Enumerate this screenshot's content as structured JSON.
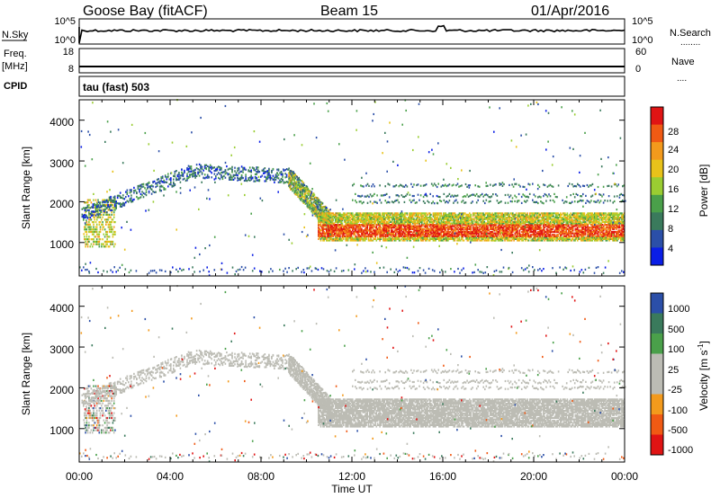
{
  "header": {
    "station": "Goose Bay (fitACF)",
    "beam": "Beam 15",
    "date": "01/Apr/2016"
  },
  "left_labels": {
    "nsky": "N.Sky",
    "freq": "Freq.",
    "freq_unit": "[MHz]",
    "cpid": "CPID"
  },
  "right_labels": {
    "nsearch": "N.Search",
    "nsearch_dots": "........",
    "nave": "Nave",
    "nave_dots": "...."
  },
  "cpid_text": "tau (fast) 503",
  "colors": {
    "power_scale": [
      "#0a1ee6",
      "#2b4fa8",
      "#3a7a5c",
      "#4aa04a",
      "#9acd32",
      "#e8c21a",
      "#f39a1c",
      "#f05a14",
      "#e01414"
    ],
    "velocity_scale": [
      "#e01414",
      "#f05a14",
      "#f39a1c",
      "#bcbcb4",
      "#bcbcb4",
      "#4aa04a",
      "#3a7a5c",
      "#2b4fa8"
    ],
    "ground_scatter": "#bcbcb4"
  },
  "chart_data": [
    {
      "type": "line",
      "name": "noise-panel",
      "left_ticks": [
        "10^5",
        "10^0"
      ],
      "right_ticks": [
        "10^5",
        "10^0"
      ]
    },
    {
      "type": "line",
      "name": "frequency-panel",
      "left_ticks": [
        "18",
        "8"
      ],
      "right_ticks": [
        "60",
        "0"
      ]
    },
    {
      "type": "heatmap",
      "name": "power-panel",
      "ylabel": "Slant Range [km]",
      "yticks": [
        "4000",
        "3000",
        "2000",
        "1000"
      ],
      "ylim": [
        180,
        4500
      ],
      "colorbar_label": "Power [dB]",
      "colorbar_ticks": [
        "28",
        "24",
        "20",
        "16",
        "12",
        "8",
        "4"
      ]
    },
    {
      "type": "heatmap",
      "name": "velocity-panel",
      "ylabel": "Slant Range [km]",
      "yticks": [
        "4000",
        "3000",
        "2000",
        "1000"
      ],
      "ylim": [
        180,
        4500
      ],
      "colorbar_label": "Velocity [m s",
      "colorbar_label_sup": "-1",
      "colorbar_label_end": "]",
      "colorbar_ticks": [
        "1000",
        "500",
        "100",
        "25",
        "-25",
        "-100",
        "-500",
        "-1000"
      ],
      "xlabel": "Time UT",
      "xticks": [
        "00:00",
        "04:00",
        "08:00",
        "12:00",
        "16:00",
        "20:00",
        "00:00"
      ]
    }
  ]
}
